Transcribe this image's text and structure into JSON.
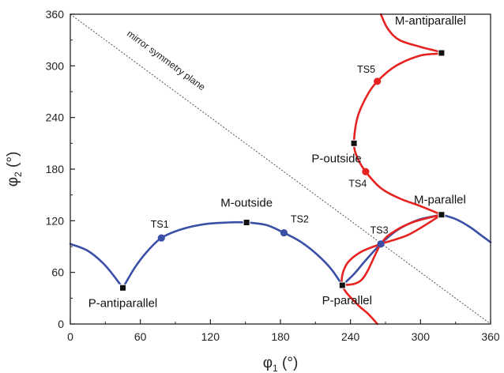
{
  "chart_data": {
    "type": "line",
    "title": "",
    "xlabel": {
      "main": "φ",
      "sub": "1",
      "unit": " (°)"
    },
    "ylabel": {
      "main": "φ",
      "sub": "2",
      "unit": " (°)"
    },
    "xlim": [
      0,
      360
    ],
    "ylim": [
      0,
      360
    ],
    "xticks": [
      0,
      60,
      120,
      180,
      240,
      300,
      360
    ],
    "yticks": [
      0,
      60,
      120,
      180,
      240,
      300,
      360
    ],
    "grid": false,
    "colors": {
      "blue": "#3b4fa6",
      "red": "#e52421",
      "marker": "#111111",
      "diagonal": "#555555"
    },
    "series": [
      {
        "color": "#3b4fa6",
        "segments": [
          [
            [
              0,
              93
            ],
            [
              15,
              85
            ],
            [
              30,
              68
            ],
            [
              45,
              42
            ]
          ],
          [
            [
              45,
              42
            ],
            [
              55,
              65
            ],
            [
              65,
              83
            ],
            [
              78,
              100
            ],
            [
              95,
              110
            ],
            [
              115,
              116
            ],
            [
              135,
              118
            ],
            [
              151,
              118
            ],
            [
              168,
              115
            ],
            [
              183,
              106
            ],
            [
              198,
              95
            ],
            [
              212,
              80
            ],
            [
              224,
              63
            ],
            [
              233,
              45
            ]
          ],
          [
            [
              233,
              45
            ],
            [
              243,
              58
            ],
            [
              253,
              74
            ],
            [
              266,
              93
            ],
            [
              280,
              109
            ],
            [
              298,
              121
            ],
            [
              318,
              127
            ]
          ],
          [
            [
              318,
              127
            ],
            [
              330,
              122
            ],
            [
              342,
              113
            ],
            [
              352,
              103
            ],
            [
              360,
              95
            ]
          ]
        ]
      },
      {
        "color": "#e52421",
        "segments": [
          [
            [
              263,
              0
            ],
            [
              255,
              12
            ],
            [
              245,
              24
            ],
            [
              233,
              45
            ],
            [
              236,
              68
            ],
            [
              248,
              83
            ],
            [
              266,
              93
            ],
            [
              290,
              104
            ],
            [
              318,
              127
            ]
          ],
          [
            [
              233,
              45
            ],
            [
              250,
              52
            ],
            [
              266,
              93
            ],
            [
              278,
              108
            ],
            [
              295,
              119
            ],
            [
              318,
              127
            ]
          ],
          [
            [
              318,
              127
            ],
            [
              300,
              137
            ],
            [
              282,
              146
            ],
            [
              266,
              158
            ],
            [
              253,
              177
            ],
            [
              246,
              193
            ],
            [
              243,
              210
            ],
            [
              246,
              240
            ],
            [
              254,
              265
            ],
            [
              263,
              282
            ],
            [
              279,
              300
            ],
            [
              300,
              312
            ],
            [
              318,
              315
            ],
            [
              300,
              322
            ],
            [
              282,
              330
            ],
            [
              272,
              343
            ],
            [
              266,
              360
            ]
          ]
        ]
      }
    ],
    "stationary_points": [
      {
        "label": "P-antiparallel",
        "x": 45,
        "y": 42
      },
      {
        "label": "M-outside",
        "x": 151,
        "y": 118
      },
      {
        "label": "P-parallel",
        "x": 233,
        "y": 45
      },
      {
        "label": "M-parallel",
        "x": 318,
        "y": 127
      },
      {
        "label": "P-outside",
        "x": 243,
        "y": 210
      },
      {
        "label": "M-antiparallel",
        "x": 318,
        "y": 315
      }
    ],
    "transition_states": [
      {
        "label": "TS1",
        "x": 78,
        "y": 100,
        "color": "#3b4fa6"
      },
      {
        "label": "TS2",
        "x": 183,
        "y": 106,
        "color": "#3b4fa6"
      },
      {
        "label": "TS3",
        "x": 266,
        "y": 93,
        "color": "#3b4fa6"
      },
      {
        "label": "TS4",
        "x": 253,
        "y": 177,
        "color": "#e52421"
      },
      {
        "label": "TS5",
        "x": 263,
        "y": 282,
        "color": "#e52421"
      }
    ],
    "annotations": [
      {
        "text": "mirror symmetry plane",
        "line_from": [
          0,
          360
        ],
        "line_to": [
          360,
          0
        ]
      }
    ]
  }
}
